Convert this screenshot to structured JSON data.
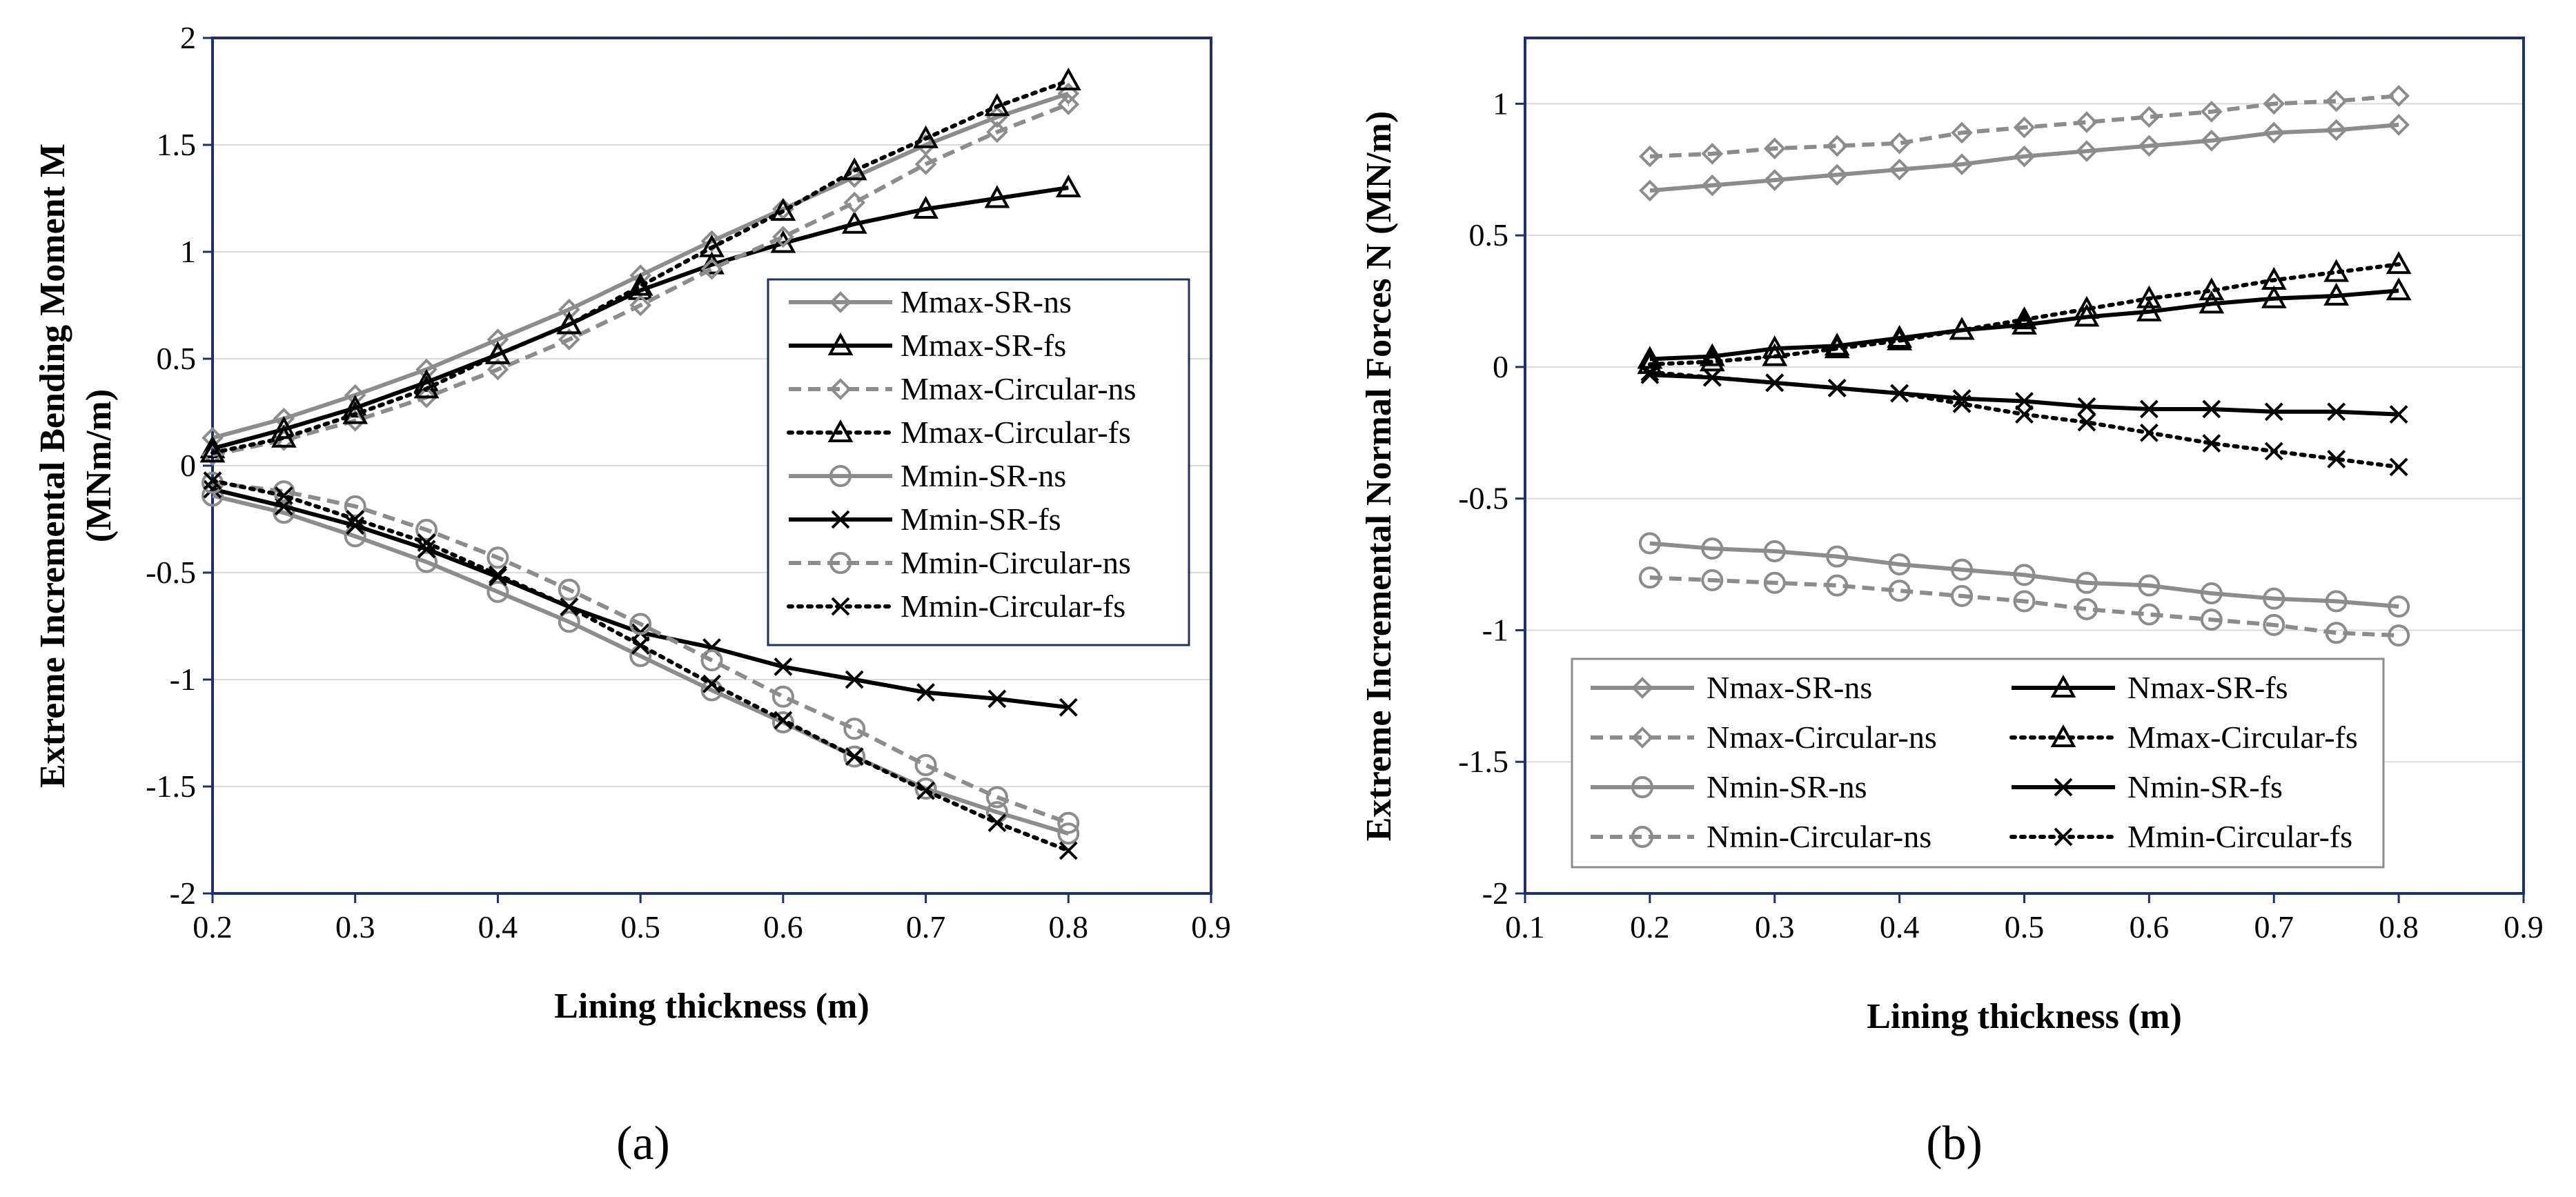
{
  "chart_data": [
    {
      "type": "line",
      "panel_label": "(a)",
      "xlabel": "Lining thickness (m)",
      "ylabel_line1": "Extreme Incremental Bending Moment M",
      "ylabel_line2": "(MNm/m)",
      "xlim": [
        0.2,
        0.9
      ],
      "ylim": [
        -2,
        2
      ],
      "x_ticks": [
        "0.2",
        "0.3",
        "0.4",
        "0.5",
        "0.6",
        "0.7",
        "0.8",
        "0.9"
      ],
      "y_ticks": [
        "2",
        "1.5",
        "1",
        "0.5",
        "0",
        "-0.5",
        "-1",
        "-1.5",
        "-2"
      ],
      "grid": "horizontal",
      "legend_position": "right-middle",
      "x": [
        0.2,
        0.25,
        0.3,
        0.35,
        0.4,
        0.45,
        0.5,
        0.55,
        0.6,
        0.65,
        0.7,
        0.75,
        0.8
      ],
      "series": [
        {
          "name": "Mmax-SR-ns",
          "color": "#8c8c8c",
          "dash": "solid",
          "marker": "diamond",
          "values": [
            0.13,
            0.22,
            0.33,
            0.45,
            0.59,
            0.73,
            0.89,
            1.05,
            1.2,
            1.35,
            1.5,
            1.63,
            1.74
          ]
        },
        {
          "name": "Mmax-SR-fs",
          "color": "#000000",
          "dash": "solid",
          "marker": "triangle",
          "values": [
            0.08,
            0.17,
            0.27,
            0.39,
            0.52,
            0.66,
            0.82,
            0.94,
            1.04,
            1.13,
            1.2,
            1.25,
            1.3
          ]
        },
        {
          "name": "Mmax-Circular-ns",
          "color": "#8c8c8c",
          "dash": "dashed",
          "marker": "diamond",
          "values": [
            0.05,
            0.12,
            0.21,
            0.32,
            0.45,
            0.59,
            0.75,
            0.92,
            1.07,
            1.23,
            1.41,
            1.56,
            1.69
          ]
        },
        {
          "name": "Mmax-Circular-fs",
          "color": "#000000",
          "dash": "dotted",
          "marker": "triangle",
          "values": [
            0.06,
            0.13,
            0.24,
            0.36,
            0.52,
            0.66,
            0.84,
            1.02,
            1.19,
            1.38,
            1.53,
            1.68,
            1.8
          ]
        },
        {
          "name": "Mmin-SR-ns",
          "color": "#8c8c8c",
          "dash": "solid",
          "marker": "circle",
          "values": [
            -0.14,
            -0.22,
            -0.33,
            -0.45,
            -0.59,
            -0.73,
            -0.89,
            -1.05,
            -1.2,
            -1.36,
            -1.51,
            -1.62,
            -1.72
          ]
        },
        {
          "name": "Mmin-SR-fs",
          "color": "#000000",
          "dash": "solid",
          "marker": "x",
          "values": [
            -0.11,
            -0.19,
            -0.28,
            -0.39,
            -0.52,
            -0.66,
            -0.78,
            -0.85,
            -0.94,
            -1.0,
            -1.06,
            -1.09,
            -1.13
          ]
        },
        {
          "name": "Mmin-Circular-ns",
          "color": "#8c8c8c",
          "dash": "dashed",
          "marker": "circle",
          "values": [
            -0.08,
            -0.12,
            -0.19,
            -0.3,
            -0.43,
            -0.58,
            -0.74,
            -0.91,
            -1.08,
            -1.23,
            -1.4,
            -1.55,
            -1.67
          ]
        },
        {
          "name": "Mmin-Circular-fs",
          "color": "#000000",
          "dash": "dotted",
          "marker": "x",
          "values": [
            -0.07,
            -0.14,
            -0.25,
            -0.36,
            -0.51,
            -0.66,
            -0.84,
            -1.02,
            -1.19,
            -1.36,
            -1.52,
            -1.67,
            -1.8
          ]
        }
      ]
    },
    {
      "type": "line",
      "panel_label": "(b)",
      "xlabel": "Lining thickness (m)",
      "ylabel": "Extreme Incremental Normal Forces N (MN/m)",
      "xlim": [
        0.1,
        0.9
      ],
      "ylim": [
        -2,
        1.25
      ],
      "x_ticks": [
        "0.1",
        "0.2",
        "0.3",
        "0.4",
        "0.5",
        "0.6",
        "0.7",
        "0.8",
        "0.9"
      ],
      "y_ticks": [
        "1",
        "0.5",
        "0",
        "-0.5",
        "-1",
        "-1.5",
        "-2"
      ],
      "grid": "horizontal",
      "legend_position": "bottom-center",
      "x": [
        0.2,
        0.25,
        0.3,
        0.35,
        0.4,
        0.45,
        0.5,
        0.55,
        0.6,
        0.65,
        0.7,
        0.75,
        0.8
      ],
      "series": [
        {
          "name": "Nmax-SR-ns",
          "color": "#8c8c8c",
          "dash": "solid",
          "marker": "diamond",
          "values": [
            0.67,
            0.69,
            0.71,
            0.73,
            0.75,
            0.77,
            0.8,
            0.82,
            0.84,
            0.86,
            0.89,
            0.9,
            0.92
          ]
        },
        {
          "name": "Nmax-SR-fs",
          "color": "#000000",
          "dash": "solid",
          "marker": "triangle",
          "values": [
            0.03,
            0.04,
            0.07,
            0.08,
            0.11,
            0.14,
            0.16,
            0.19,
            0.21,
            0.24,
            0.26,
            0.27,
            0.29
          ]
        },
        {
          "name": "Nmax-Circular-ns",
          "color": "#8c8c8c",
          "dash": "dashed",
          "marker": "diamond",
          "values": [
            0.8,
            0.81,
            0.83,
            0.84,
            0.85,
            0.89,
            0.91,
            0.93,
            0.95,
            0.97,
            1.0,
            1.01,
            1.03
          ]
        },
        {
          "name": "Mmax-Circular-fs",
          "color": "#000000",
          "dash": "dotted",
          "marker": "triangle",
          "values": [
            0.01,
            0.02,
            0.04,
            0.07,
            0.1,
            0.14,
            0.18,
            0.22,
            0.26,
            0.29,
            0.33,
            0.36,
            0.39
          ]
        },
        {
          "name": "Nmin-SR-ns",
          "color": "#8c8c8c",
          "dash": "solid",
          "marker": "circle",
          "values": [
            -0.67,
            -0.69,
            -0.7,
            -0.72,
            -0.75,
            -0.77,
            -0.79,
            -0.82,
            -0.83,
            -0.86,
            -0.88,
            -0.89,
            -0.91
          ]
        },
        {
          "name": "Nmin-SR-fs",
          "color": "#000000",
          "dash": "solid",
          "marker": "x",
          "values": [
            -0.03,
            -0.04,
            -0.06,
            -0.08,
            -0.1,
            -0.12,
            -0.13,
            -0.15,
            -0.16,
            -0.16,
            -0.17,
            -0.17,
            -0.18
          ]
        },
        {
          "name": "Nmin-Circular-ns",
          "color": "#8c8c8c",
          "dash": "dashed",
          "marker": "circle",
          "values": [
            -0.8,
            -0.81,
            -0.82,
            -0.83,
            -0.85,
            -0.87,
            -0.89,
            -0.92,
            -0.94,
            -0.96,
            -0.98,
            -1.01,
            -1.02
          ]
        },
        {
          "name": "Mmin-Circular-fs",
          "color": "#000000",
          "dash": "dotted",
          "marker": "x",
          "values": [
            -0.02,
            -0.04,
            -0.06,
            -0.08,
            -0.1,
            -0.14,
            -0.18,
            -0.21,
            -0.25,
            -0.29,
            -0.32,
            -0.35,
            -0.38
          ]
        }
      ]
    }
  ]
}
